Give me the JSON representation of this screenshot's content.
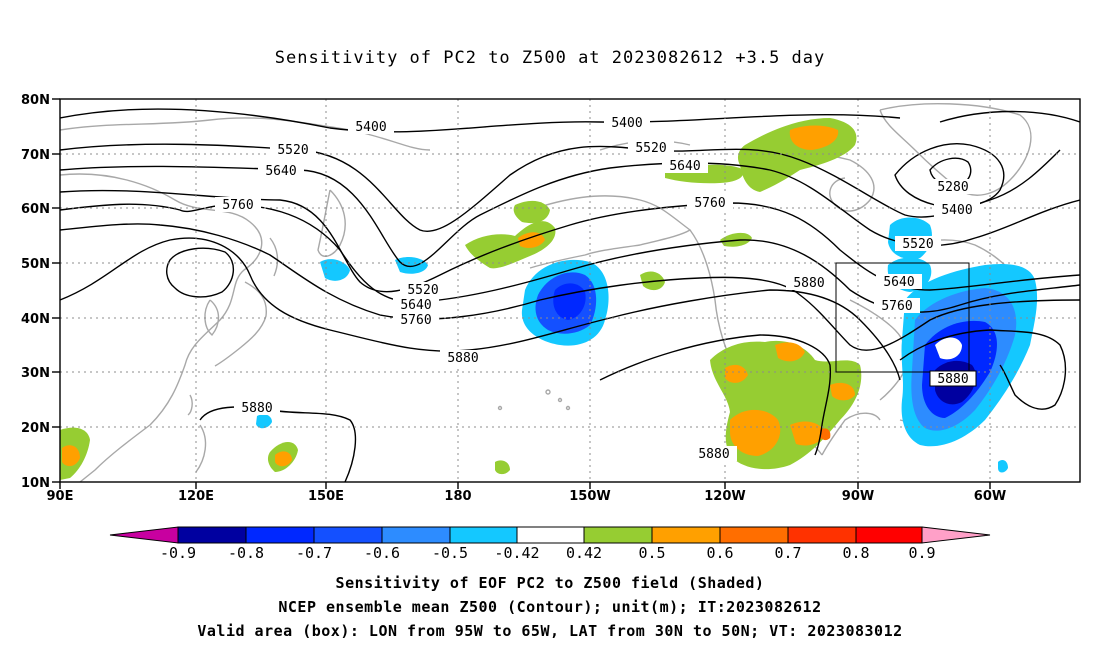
{
  "title": "Sensitivity of PC2 to Z500 at 2023082612 +3.5 day",
  "lat_labels": [
    "80N",
    "70N",
    "60N",
    "50N",
    "40N",
    "30N",
    "20N",
    "10N"
  ],
  "lon_labels": [
    "90E",
    "120E",
    "150E",
    "180",
    "150W",
    "120W",
    "90W",
    "60W"
  ],
  "contour_labels": [
    "5400",
    "5400",
    "5520",
    "5520",
    "5640",
    "5640",
    "5760",
    "5760",
    "5280",
    "5400",
    "5520",
    "5640",
    "5760",
    "5520",
    "5640",
    "5760",
    "5880",
    "5880",
    "5880",
    "5880",
    "5880"
  ],
  "colorbar": {
    "labels": [
      "-0.9",
      "-0.8",
      "-0.7",
      "-0.6",
      "-0.5",
      "-0.42",
      "0.42",
      "0.5",
      "0.6",
      "0.7",
      "0.8",
      "0.9"
    ],
    "colors": [
      "#0000a0",
      "#0028ff",
      "#1450ff",
      "#2d8cff",
      "#14c8ff",
      "#ffffff",
      "#96cd32",
      "#ffa000",
      "#ff6e00",
      "#ff3200",
      "#ff0000"
    ],
    "low_extend_color": "#c800a0",
    "high_extend_color": "#ffa0c8"
  },
  "valid_area": {
    "lon_from": "95W",
    "lon_to": "65W",
    "lat_from": "30N",
    "lat_to": "50N"
  },
  "captions": {
    "line1": "Sensitivity of EOF PC2 to Z500 field (Shaded)",
    "line2": "NCEP ensemble mean Z500 (Contour); unit(m); IT:2023082612",
    "line3": "Valid area (box): LON from 95W to 65W, LAT from 30N to 50N; VT: 2023083012"
  }
}
